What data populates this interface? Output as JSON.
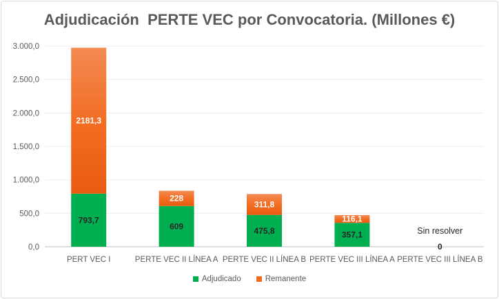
{
  "chart_data": {
    "type": "stacked-bar",
    "title": "Adjudicación  PERTE VEC por Convocatoria. (Millones €)",
    "categories": [
      "PERT VEC I",
      "PERTE VEC II LÍNEA A",
      "PERTE VEC II LÍNEA B",
      "PERTE VEC III LÍNEA A",
      "PERTE VEC III LÍNEA B"
    ],
    "series": [
      {
        "name": "Adjudicado",
        "color": "#00b050",
        "values": [
          793.7,
          609,
          475.8,
          357.1,
          0
        ],
        "labels": [
          "793,7",
          "609",
          "475,8",
          "357,1",
          "0"
        ]
      },
      {
        "name": "Remanente",
        "color": "#f26b21",
        "values": [
          2181.3,
          228,
          311.8,
          116.1,
          0
        ],
        "labels": [
          "2181,3",
          "228",
          "311,8",
          "116,1",
          ""
        ]
      }
    ],
    "yticks": [
      "0,0",
      "500,0",
      "1.000,0",
      "1.500,0",
      "2.000,0",
      "2.500,0",
      "3.000,0"
    ],
    "ylim": [
      0,
      3000
    ],
    "annotations": [
      {
        "category": "PERTE VEC III LÍNEA B",
        "text": "Sin resolver"
      }
    ],
    "legend_position": "bottom"
  }
}
